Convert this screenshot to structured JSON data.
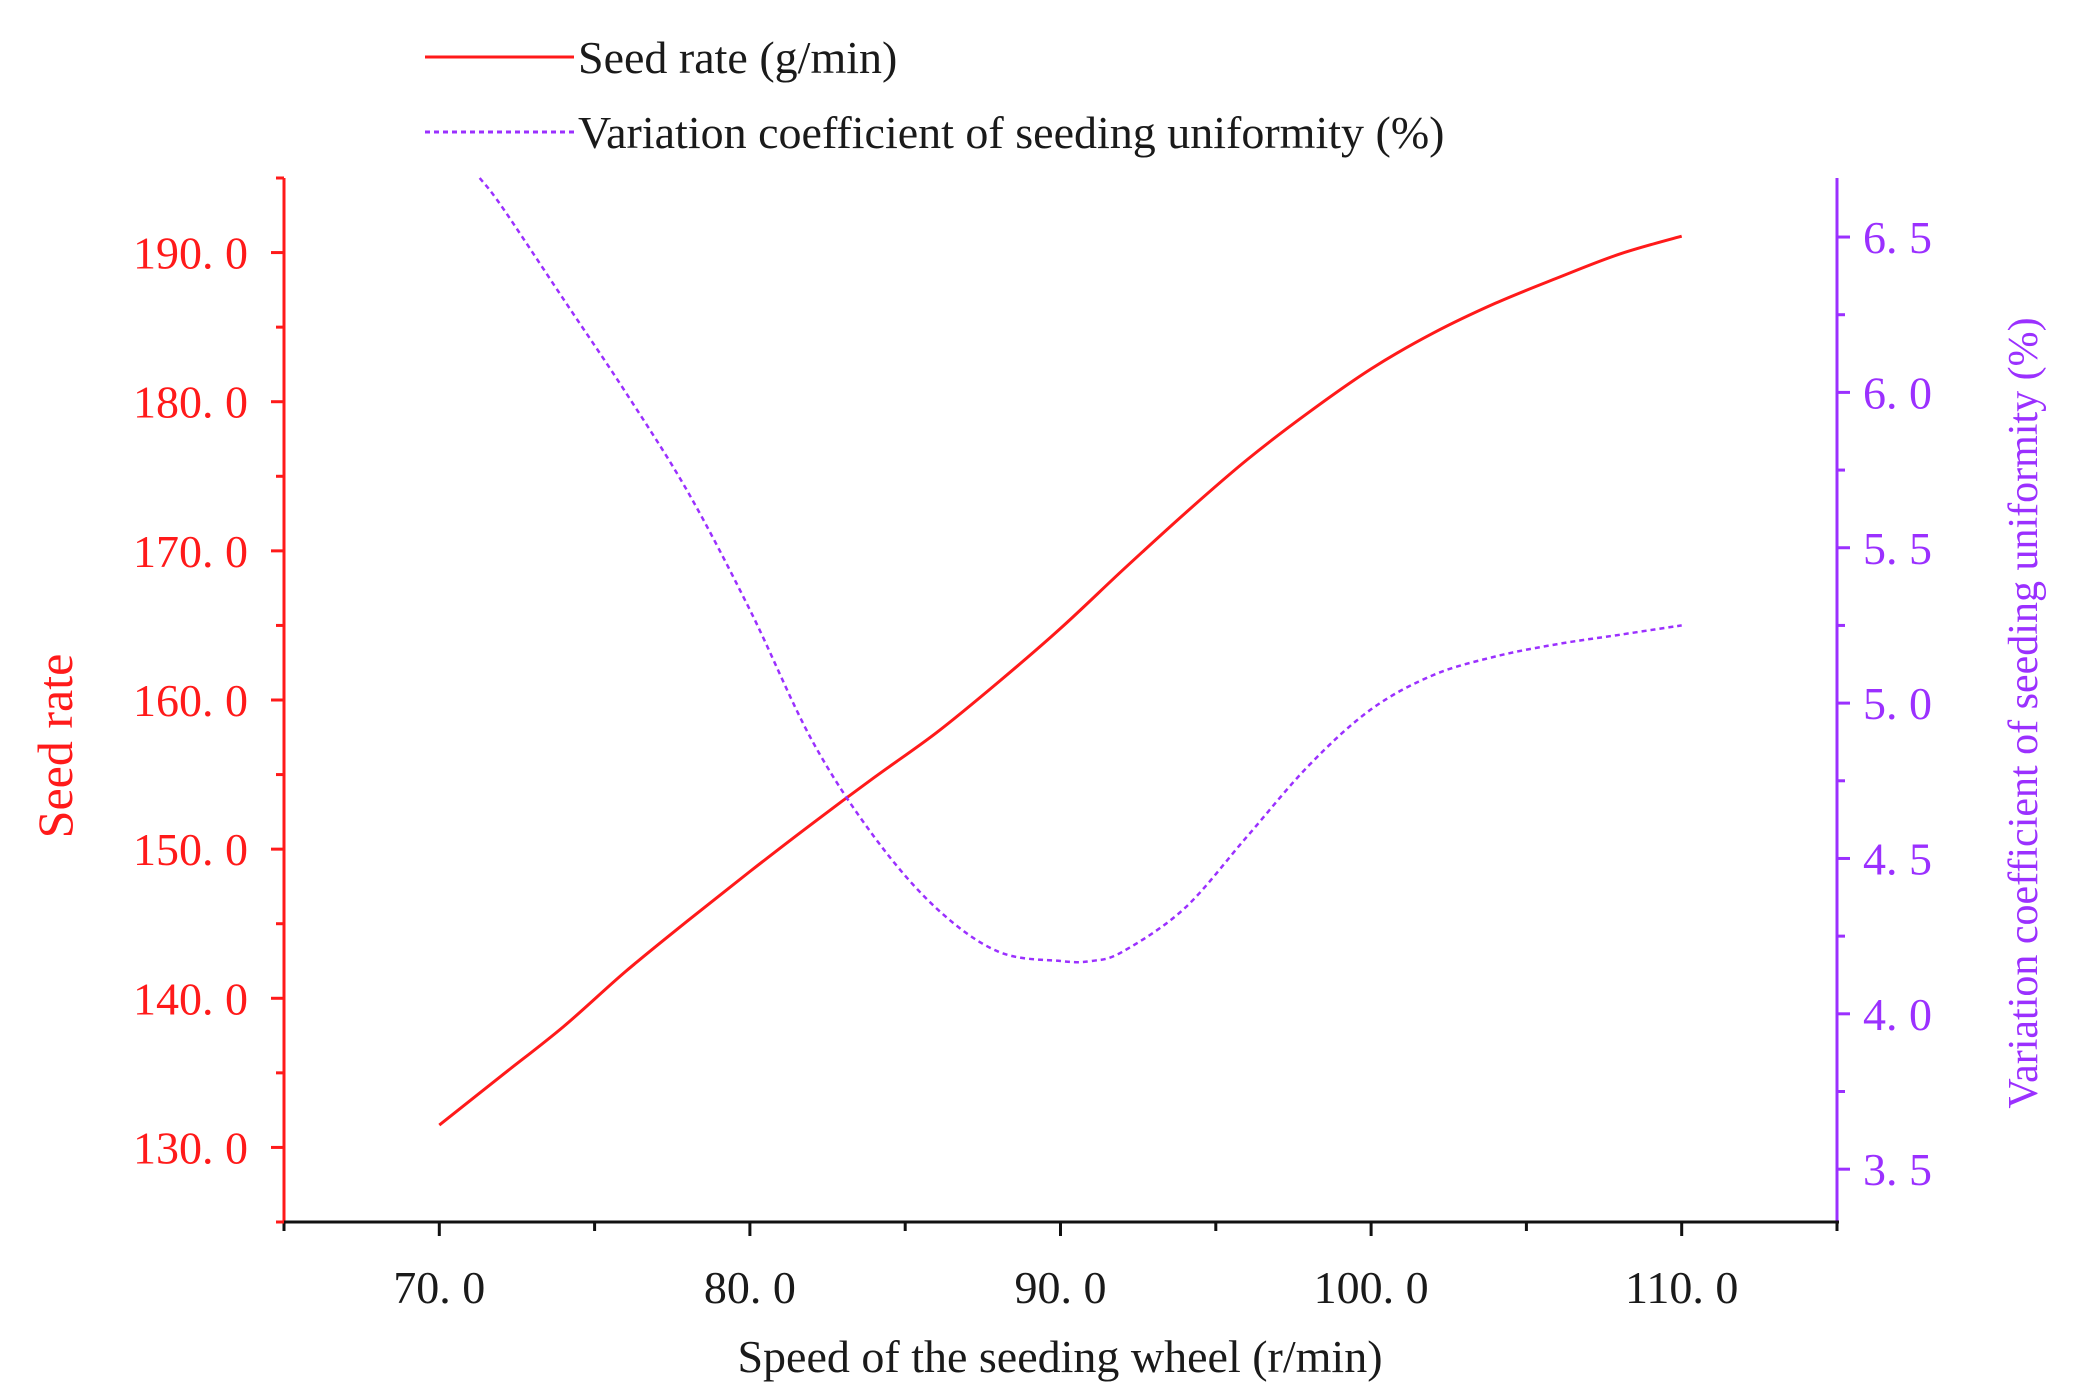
{
  "colors": {
    "left_axis": "#ff1a1a",
    "right_axis": "#9b30ff",
    "text": "#1a1a1a",
    "axis_black": "#111111"
  },
  "legend": [
    {
      "label": "Seed rate (g/min)",
      "style": "solid",
      "color": "#ff1a1a"
    },
    {
      "label": "Variation coefficient of seeding uniformity (%)",
      "style": "dotted",
      "color": "#9b30ff"
    }
  ],
  "chart_data": {
    "type": "line",
    "title": "",
    "xlabel": "Speed of the seeding wheel (r/min)",
    "ylabel_left": "Seed rate",
    "ylabel_right": "Variation coefficient of seeding uniformity (%)",
    "xlim": [
      65,
      115
    ],
    "ylim_left": [
      125,
      195
    ],
    "ylim_right": [
      3.33,
      6.69
    ],
    "x_ticks": [
      70,
      80,
      90,
      100,
      110
    ],
    "x_tick_labels": [
      "70. 0",
      "80. 0",
      "90. 0",
      "100. 0",
      "110. 0"
    ],
    "x_minor_ticks": [
      65,
      75,
      85,
      95,
      105,
      115
    ],
    "y_left_ticks": [
      130,
      140,
      150,
      160,
      170,
      180,
      190
    ],
    "y_left_tick_labels": [
      "130. 0",
      "140. 0",
      "150. 0",
      "160. 0",
      "170. 0",
      "180. 0",
      "190. 0"
    ],
    "y_right_ticks": [
      3.5,
      4.0,
      4.5,
      5.0,
      5.5,
      6.0,
      6.5
    ],
    "y_right_tick_labels": [
      "3. 5",
      "4. 0",
      "4. 5",
      "5. 0",
      "5. 5",
      "6. 0",
      "6. 5"
    ],
    "series": [
      {
        "name": "Seed rate (g/min)",
        "axis": "left",
        "x": [
          70,
          72,
          74,
          76,
          78,
          80,
          82,
          84,
          86,
          88,
          90,
          92,
          94,
          96,
          98,
          100,
          102,
          104,
          106,
          108,
          110
        ],
        "y": [
          131.5,
          134.8,
          138.1,
          141.8,
          145.2,
          148.5,
          151.7,
          154.8,
          157.8,
          161.2,
          164.8,
          168.7,
          172.5,
          176.1,
          179.3,
          182.2,
          184.6,
          186.6,
          188.3,
          189.9,
          191.1
        ]
      },
      {
        "name": "Variation coefficient of seeding uniformity (%)",
        "axis": "right",
        "x": [
          71.3,
          72,
          74,
          76,
          78,
          80,
          82,
          84,
          86,
          88,
          90,
          91,
          92,
          94,
          96,
          98,
          100,
          102,
          104,
          106,
          108,
          110
        ],
        "y": [
          6.69,
          6.6,
          6.3,
          6.0,
          5.68,
          5.3,
          4.88,
          4.57,
          4.34,
          4.2,
          4.17,
          4.17,
          4.2,
          4.34,
          4.57,
          4.8,
          4.98,
          5.09,
          5.15,
          5.19,
          5.22,
          5.25
        ]
      }
    ]
  }
}
